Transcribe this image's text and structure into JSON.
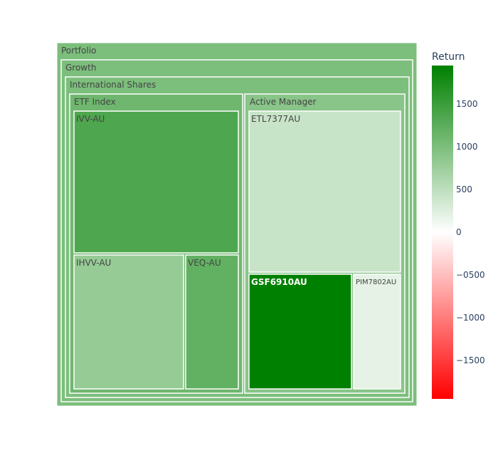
{
  "chart_data": {
    "type": "treemap",
    "colorbar": {
      "title": "Return",
      "range": [
        -1950,
        1950
      ],
      "ticks": [
        1500,
        1000,
        500,
        0,
        -500,
        -1000,
        -1500
      ],
      "tick_labels": [
        "1500",
        "1000",
        "500",
        "0",
        "−0500",
        "−1000",
        "−1500"
      ],
      "colorscale": [
        [
          0,
          "#ff0000"
        ],
        [
          0.5,
          "#ffffff"
        ],
        [
          1,
          "#008000"
        ]
      ]
    },
    "nodes": [
      {
        "id": "Portfolio",
        "label": "Portfolio",
        "parent": "",
        "return": 1000
      },
      {
        "id": "Growth",
        "label": "Growth",
        "parent": "Portfolio",
        "return": 1000
      },
      {
        "id": "International Shares",
        "label": "International Shares",
        "parent": "Growth",
        "return": 1000
      },
      {
        "id": "ETF Index",
        "label": "ETF Index",
        "parent": "International Shares",
        "return": 1100
      },
      {
        "id": "Active Manager",
        "label": "Active Manager",
        "parent": "International Shares",
        "return": 900
      },
      {
        "id": "IVV-AU",
        "label": "IVV-AU",
        "parent": "ETF Index",
        "return": 1350
      },
      {
        "id": "IHVV-AU",
        "label": "IHVV-AU",
        "parent": "ETF Index",
        "return": 800
      },
      {
        "id": "VEQ-AU",
        "label": "VEQ-AU",
        "parent": "ETF Index",
        "return": 1200
      },
      {
        "id": "ETL7377AU",
        "label": "ETL7377AU",
        "parent": "Active Manager",
        "return": 420
      },
      {
        "id": "GSF6910AU",
        "label": "GSF6910AU",
        "parent": "Active Manager",
        "return": 1950
      },
      {
        "id": "PIM7802AU",
        "label": "PIM7802AU",
        "parent": "Active Manager",
        "return": 200
      }
    ]
  }
}
